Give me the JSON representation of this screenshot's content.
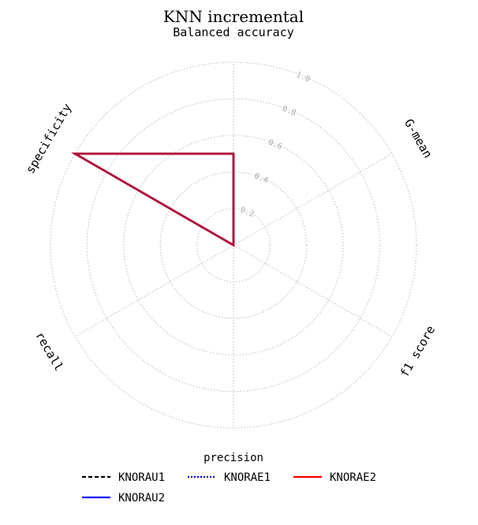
{
  "chart_data": {
    "type": "radar",
    "title": "KNN incremental",
    "subtitle": "Balanced accuracy",
    "axes": [
      "Balanced accuracy",
      "G-mean",
      "f1 score",
      "precision",
      "recall",
      "specificity"
    ],
    "visible_axis_labels": [
      "specificity",
      "G-mean",
      "recall",
      "f1 score"
    ],
    "legend_title": "precision",
    "rlim": [
      0,
      1.0
    ],
    "ring_ticks": [
      0.2,
      0.4,
      0.6,
      0.8,
      1.0
    ],
    "ring_tick_labels": [
      "0.2",
      "0.4",
      "0.6",
      "0.8",
      "1.0"
    ],
    "grid": true,
    "legend_placement": "bottom",
    "series": [
      {
        "name": "KNORAU1",
        "color": "#000000",
        "style": "dashed",
        "values": [
          0.5,
          0,
          0,
          0,
          0,
          1.0
        ]
      },
      {
        "name": "KNORAE1",
        "color": "#0000ff",
        "style": "dotted",
        "values": [
          0.5,
          0,
          0,
          0,
          0,
          1.0
        ]
      },
      {
        "name": "KNORAE2",
        "color": "#ff0000",
        "style": "solid",
        "values": [
          0.5,
          0,
          0,
          0,
          0,
          1.0
        ]
      },
      {
        "name": "KNORAU2",
        "color": "#0000ff",
        "style": "solid",
        "values": [
          0.5,
          0,
          0,
          0,
          0,
          1.0
        ]
      }
    ],
    "overlay_color": "#b0143c"
  }
}
